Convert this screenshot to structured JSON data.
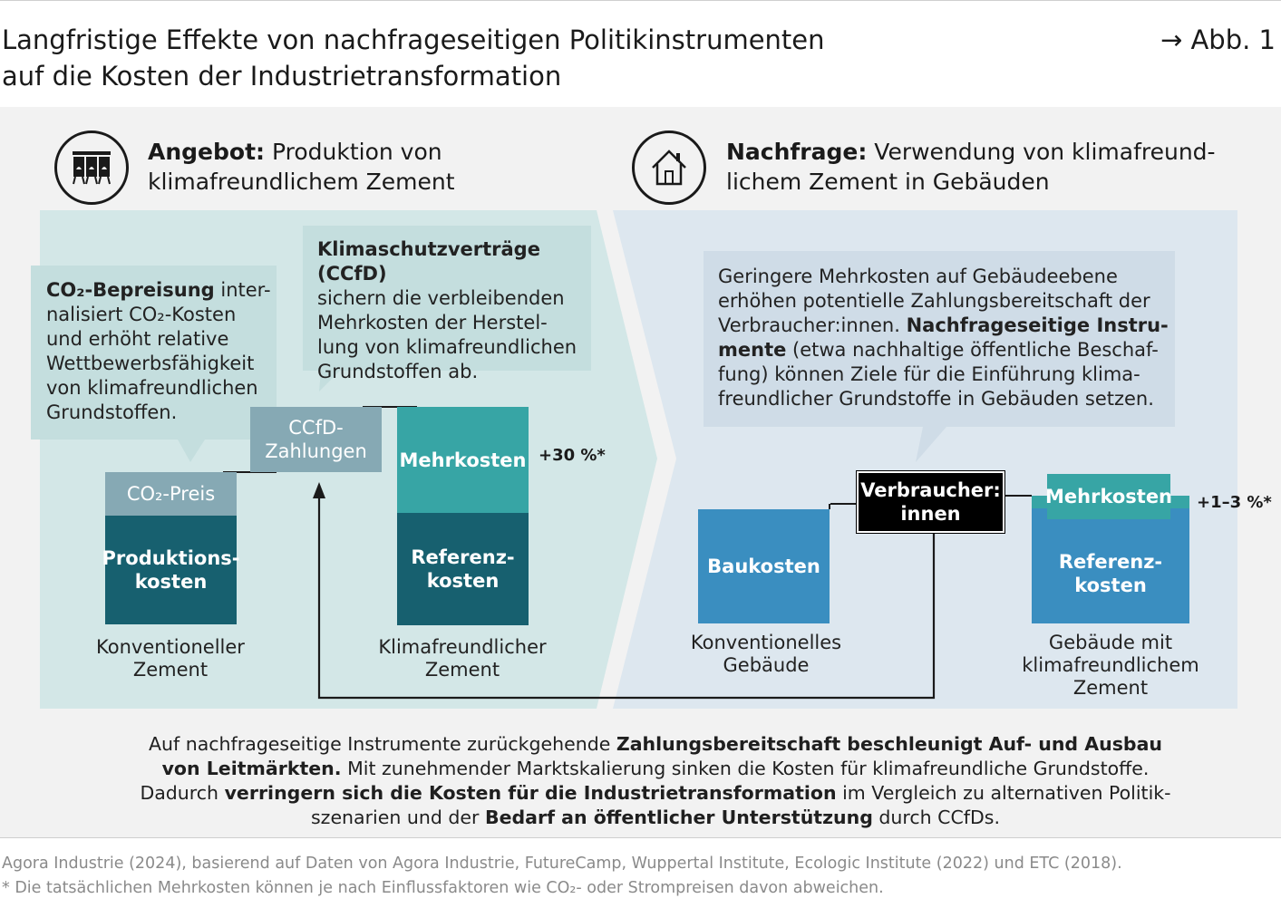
{
  "header": {
    "title_line1": "Langfristige Effekte von nachfrageseitigen Politikinstrumenten",
    "title_line2": "auf die Kosten der Industrietransformation",
    "figure_ref": "→ Abb. 1"
  },
  "supply": {
    "icon": "factory-silos-icon",
    "heading_bold": "Angebot:",
    "heading_line1": " Produktion von",
    "heading_line2": "klimafreundlichem Zement",
    "bubble_co2": {
      "bold": "CO₂-Bepreisung",
      "line1_rest": " inter-",
      "line2": "nalisiert CO₂-Kosten",
      "line3": "und erhöht relative",
      "line4": "Wettbewerbsfähigkeit",
      "line5": "von klimafreundlichen",
      "line6": "Grundstoffen."
    },
    "bubble_ccfd": {
      "bold": "Klimaschutzverträge (CCfD)",
      "line2": "sichern die verbleibenden",
      "line3": "Mehrkosten der Herstel-",
      "line4": "lung von klimafreundlichen",
      "line5": "Grundstoffen ab."
    },
    "bars": {
      "co2_price": "CO₂-Preis",
      "production_costs": "Produktions-\nkosten",
      "ccfd_payments": "CCfD-\nZahlungen",
      "extra_costs": "Mehrkosten",
      "reference_costs": "Referenz-\nkosten"
    },
    "extra_pct": "+30 %*",
    "label_conventional": "Konventioneller\nZement",
    "label_green": "Klimafreundlicher\nZement"
  },
  "demand": {
    "icon": "house-icon",
    "heading_bold": "Nachfrage:",
    "heading_line1": " Verwendung von klimafreund-",
    "heading_line2": "lichem Zement in Gebäuden",
    "bubble": {
      "line1": "Geringere Mehrkosten auf Gebäudeebene",
      "line2": "erhöhen potentielle Zahlungsbereitschaft der",
      "line3_plain": "Verbraucher:innen. ",
      "line3_bold": "Nachfrageseitige Instru-",
      "line4_bold": "mente",
      "line4_rest": " (etwa nachhaltige öffentliche Beschaf-",
      "line5": "fung) können Ziele für die Einführung klima-",
      "line6": "freundlicher Grundstoffe in Gebäuden setzen."
    },
    "bars": {
      "consumers": "Verbraucher:\ninnen",
      "construction_costs": "Baukosten",
      "extra_costs": "Mehrkosten",
      "reference_costs": "Referenz-\nkosten"
    },
    "extra_pct": "+1–3 %*",
    "label_conventional": "Konventionelles\nGebäude",
    "label_green": "Gebäude mit\nklimafreundlichem\nZement"
  },
  "bottom": {
    "p1_plain": "Auf nachfrageseitige Instrumente zurückgehende ",
    "p1_bold": "Zahlungsbereitschaft beschleunigt Auf- und Ausbau",
    "p2_bold": "von Leitmärkten.",
    "p2_plain": " Mit zunehmender Marktskalierung sinken die Kosten für klimafreundliche Grundstoffe.",
    "p3_plain": "Dadurch ",
    "p3_bold": "verringern sich die Kosten für die Industrietransformation",
    "p3_rest": " im Vergleich zu alternativen Politik-",
    "p4_plain": "szenarien und der ",
    "p4_bold": "Bedarf an öffentlicher Unterstützung",
    "p4_rest": " durch CCfDs."
  },
  "footer": {
    "source": "Agora Industrie (2024), basierend auf Daten von Agora Industrie, FutureCamp, Wuppertal Institute, Ecologic Institute (2022) und ETC (2018).",
    "note": "* Die tatsächlichen Mehrkosten können je nach Einflussfaktoren wie CO₂- oder Strompreisen davon abweichen."
  },
  "colors": {
    "panel_bg": "#f2f2f2",
    "supply_bg": "#d3e7e7",
    "demand_bg": "#dde7ef",
    "bubble_supply": "#c4dede",
    "bubble_demand": "#cfdce7",
    "dark_teal": "#17606f",
    "light_steel": "#86a9b4",
    "teal": "#37a5a5",
    "blue": "#3a8ec0",
    "black": "#000000"
  }
}
